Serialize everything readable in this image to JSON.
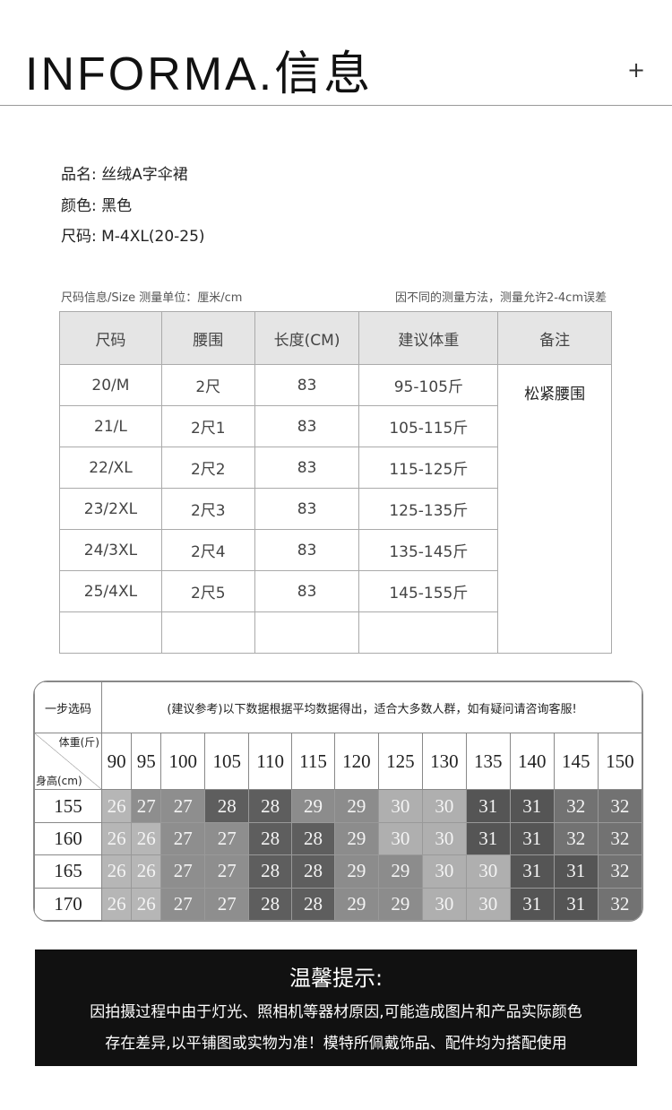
{
  "header": {
    "logo": "INFORMA.信息",
    "plus": "+"
  },
  "product": {
    "name": "品名: 丝绒A字伞裙",
    "color": "颜色: 黑色",
    "size": "尺码: M-4XL(20-25)"
  },
  "size_table": {
    "caption_left": "尺码信息/Size  测量单位：厘米/cm",
    "caption_right": "因不同的测量方法，测量允许2-4cm误差",
    "headers": [
      "尺码",
      "腰围",
      "长度(CM)",
      "建议体重",
      "备注"
    ],
    "note": "松紧腰围",
    "rows": [
      [
        "20/M",
        "2尺",
        "83",
        "95-105斤"
      ],
      [
        "21/L",
        "2尺1",
        "83",
        "105-115斤"
      ],
      [
        "22/XL",
        "2尺2",
        "83",
        "115-125斤"
      ],
      [
        "23/2XL",
        "2尺3",
        "83",
        "125-135斤"
      ],
      [
        "24/3XL",
        "2尺4",
        "83",
        "135-145斤"
      ],
      [
        "25/4XL",
        "2尺5",
        "83",
        "145-155斤"
      ]
    ]
  },
  "grid": {
    "title": "一步选码",
    "notice": "(建议参考)以下数据根据平均数据得出，适合大多数人群，如有疑问请咨询客服!",
    "weight_label": "体重(斤)",
    "height_label": "身高(cm)",
    "weights": [
      "90",
      "95",
      "100",
      "105",
      "110",
      "115",
      "120",
      "125",
      "130",
      "135",
      "140",
      "145",
      "150"
    ],
    "rows": [
      {
        "height": "155",
        "values": [
          "26",
          "27",
          "27",
          "28",
          "28",
          "29",
          "29",
          "30",
          "30",
          "31",
          "31",
          "32",
          "32"
        ]
      },
      {
        "height": "160",
        "values": [
          "26",
          "26",
          "27",
          "27",
          "28",
          "28",
          "29",
          "30",
          "30",
          "31",
          "31",
          "32",
          "32"
        ]
      },
      {
        "height": "165",
        "values": [
          "26",
          "26",
          "27",
          "27",
          "28",
          "28",
          "29",
          "29",
          "30",
          "30",
          "31",
          "31",
          "32"
        ]
      },
      {
        "height": "170",
        "values": [
          "26",
          "26",
          "27",
          "27",
          "28",
          "28",
          "29",
          "29",
          "30",
          "30",
          "31",
          "31",
          "32"
        ]
      }
    ],
    "colors": {
      "26": "#b6b6b6",
      "27": "#8e8e8e",
      "28": "#5e5e5e",
      "29": "#8c8c8c",
      "30": "#afafaf",
      "31": "#555555",
      "32": "#727272"
    }
  },
  "tip": {
    "title": "温馨提示:",
    "line1": "因拍摄过程中由于灯光、照相机等器材原因,可能造成图片和产品实际颜色",
    "line2": "存在差异,以平铺图或实物为准！模特所佩戴饰品、配件均为搭配使用"
  }
}
